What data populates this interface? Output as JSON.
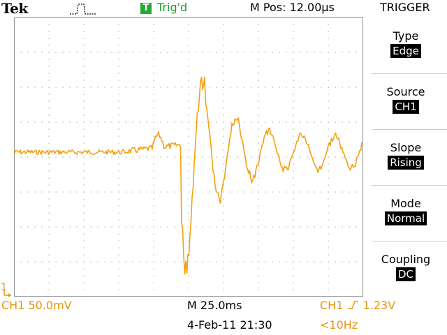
{
  "header": {
    "brand": "Tek",
    "acq_icon": "single-pulse-icon",
    "trigger_icon_letter": "T",
    "trigger_status": "Trig'd",
    "horizontal_position": "M Pos: 12.00µs"
  },
  "menu": {
    "title": "TRIGGER",
    "items": [
      {
        "label": "Type",
        "value": "Edge"
      },
      {
        "label": "Source",
        "value": "CH1"
      },
      {
        "label": "Slope",
        "value": "Rising"
      },
      {
        "label": "Mode",
        "value": "Normal"
      },
      {
        "label": "Coupling",
        "value": "DC"
      }
    ]
  },
  "readouts": {
    "ch1_scale": "CH1  50.0mV",
    "timebase": "M 25.0ms",
    "datetime": "4-Feb-11 21:30",
    "trigger_source": "CH1",
    "trigger_level": "1.23V",
    "trigger_frequency": "<10Hz"
  },
  "markers": {
    "ch1_label": "1"
  },
  "colors": {
    "trace": "#f5a00f",
    "readout": "#e8930d",
    "trig_ok": "#22aa33",
    "grid": "#a0a0a0"
  }
}
